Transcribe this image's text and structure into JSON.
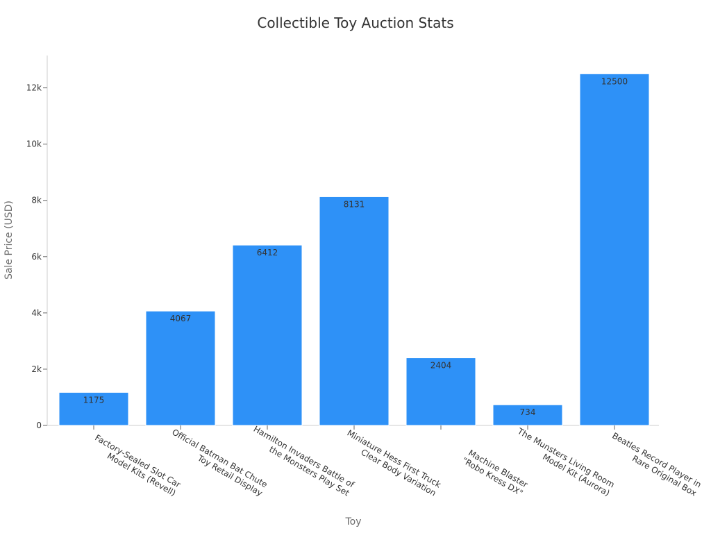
{
  "chart_data": {
    "type": "bar",
    "title": "Collectible Toy Auction Stats",
    "xlabel": "Toy",
    "ylabel": "Sale Price (USD)",
    "categories": [
      [
        "Factory-Sealed Slot Car",
        "Model Kits (Revell)"
      ],
      [
        "Official Batman Bat Chute",
        "Toy Retail Display"
      ],
      [
        "Hamilton Invaders Battle of",
        "the Monsters Play Set"
      ],
      [
        "Miniature Hess First Truck",
        "Clear Body Variation"
      ],
      [
        "Machine Blaster",
        "\"Robo Kress DX\""
      ],
      [
        "The Munsters Living Room",
        "Model Kit (Aurora)"
      ],
      [
        "Beatles Record Player in",
        "Rare Original Box"
      ]
    ],
    "values": [
      1175,
      4067,
      6412,
      8131,
      2404,
      734,
      12500
    ],
    "data_labels": [
      "1175",
      "4067",
      "6412",
      "8131",
      "2404",
      "734",
      "12500"
    ],
    "yticks": [
      0,
      2000,
      4000,
      6000,
      8000,
      10000,
      12000
    ],
    "ytick_labels": [
      "0",
      "2k",
      "4k",
      "6k",
      "8k",
      "10k",
      "12k"
    ],
    "ylim": [
      0,
      13150
    ],
    "grid": false,
    "bar_color": "#2e91f7"
  }
}
